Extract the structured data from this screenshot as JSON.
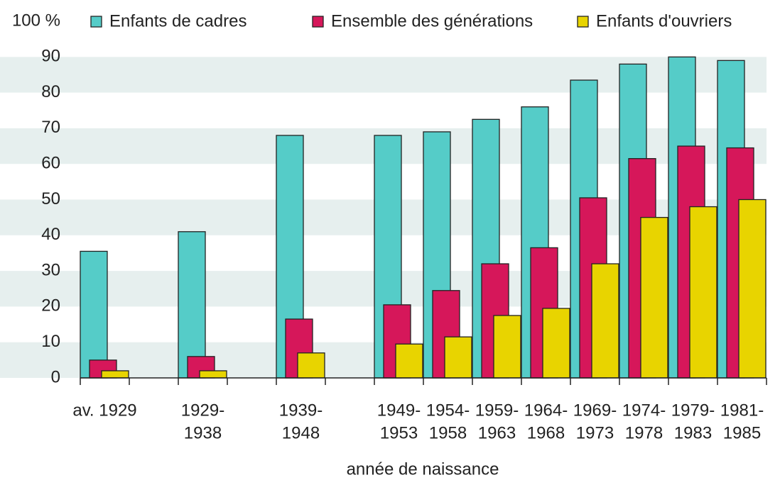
{
  "chart_data": {
    "type": "bar",
    "x_label": "année de naissance",
    "categories": [
      [
        "av. 1929"
      ],
      [
        "1929-",
        "1938"
      ],
      [
        "1939-",
        "1948"
      ],
      [
        "1949-",
        "1953"
      ],
      [
        "1954-",
        "1958"
      ],
      [
        "1959-",
        "1963"
      ],
      [
        "1964-",
        "1968"
      ],
      [
        "1969-",
        "1973"
      ],
      [
        "1974-",
        "1978"
      ],
      [
        "1979-",
        "1983"
      ],
      [
        "1981-",
        "1985"
      ]
    ],
    "series": [
      {
        "name": "Enfants de cadres",
        "color": "#55ccc8",
        "values": [
          35.5,
          41,
          68,
          68,
          69,
          72.5,
          76,
          83.5,
          88,
          90,
          89
        ]
      },
      {
        "name": "Ensemble des générations",
        "color": "#d6175a",
        "values": [
          5,
          6,
          16.5,
          20.5,
          24.5,
          32,
          36.5,
          50.5,
          61.5,
          65,
          64.5
        ]
      },
      {
        "name": "Enfants d'ouvriers",
        "color": "#e8d400",
        "values": [
          2,
          2,
          7,
          9.5,
          11.5,
          17.5,
          19.5,
          32,
          45,
          48,
          50
        ]
      }
    ],
    "ylim": [
      0,
      100
    ],
    "yticks": [
      0,
      10,
      20,
      30,
      40,
      50,
      60,
      70,
      80,
      90,
      {
        "value": 100,
        "label": "100 %"
      }
    ],
    "grid": "bands"
  }
}
